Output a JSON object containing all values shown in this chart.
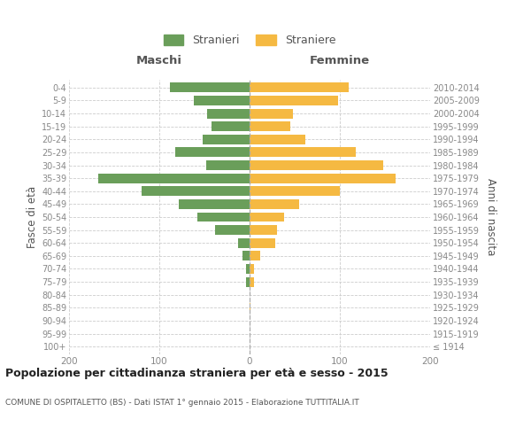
{
  "age_groups": [
    "100+",
    "95-99",
    "90-94",
    "85-89",
    "80-84",
    "75-79",
    "70-74",
    "65-69",
    "60-64",
    "55-59",
    "50-54",
    "45-49",
    "40-44",
    "35-39",
    "30-34",
    "25-29",
    "20-24",
    "15-19",
    "10-14",
    "5-9",
    "0-4"
  ],
  "birth_years": [
    "≤ 1914",
    "1915-1919",
    "1920-1924",
    "1925-1929",
    "1930-1934",
    "1935-1939",
    "1940-1944",
    "1945-1949",
    "1950-1954",
    "1955-1959",
    "1960-1964",
    "1965-1969",
    "1970-1974",
    "1975-1979",
    "1980-1984",
    "1985-1989",
    "1990-1994",
    "1995-1999",
    "2000-2004",
    "2005-2009",
    "2010-2014"
  ],
  "males": [
    0,
    0,
    0,
    0,
    0,
    4,
    4,
    8,
    13,
    38,
    58,
    78,
    120,
    168,
    48,
    82,
    52,
    42,
    47,
    62,
    88
  ],
  "females": [
    0,
    0,
    0,
    1,
    0,
    5,
    5,
    12,
    28,
    30,
    38,
    55,
    100,
    162,
    148,
    118,
    62,
    45,
    48,
    98,
    110
  ],
  "male_color": "#6a9e5a",
  "female_color": "#f5b942",
  "bar_height": 0.75,
  "xlim": 200,
  "xlabel_left": "Maschi",
  "xlabel_right": "Femmine",
  "ylabel_left": "Fasce di età",
  "ylabel_right": "Anni di nascita",
  "legend_male": "Stranieri",
  "legend_female": "Straniere",
  "title": "Popolazione per cittadinanza straniera per età e sesso - 2015",
  "subtitle": "COMUNE DI OSPITALETTO (BS) - Dati ISTAT 1° gennaio 2015 - Elaborazione TUTTITALIA.IT",
  "background_color": "#ffffff",
  "grid_color": "#cccccc",
  "text_color": "#555555",
  "axis_text_color": "#888888"
}
